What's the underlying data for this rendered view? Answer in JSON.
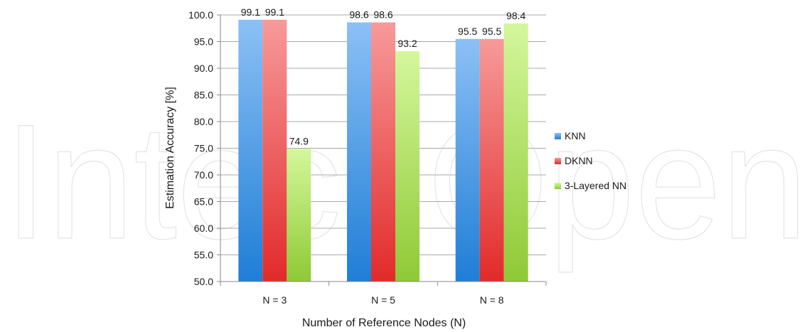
{
  "watermark": "IntechOpen",
  "chart_data": {
    "type": "bar",
    "categories": [
      "N = 3",
      "N = 5",
      "N = 8"
    ],
    "series": [
      {
        "name": "KNN",
        "values": [
          99.1,
          98.6,
          95.5
        ]
      },
      {
        "name": "DKNN",
        "values": [
          99.1,
          98.6,
          95.5
        ]
      },
      {
        "name": "3-Layered NN",
        "values": [
          74.9,
          93.2,
          98.4
        ]
      }
    ],
    "data_labels": [
      [
        "99.1",
        "98.6",
        "95.5"
      ],
      [
        "99.1",
        "98.6",
        "95.5"
      ],
      [
        "74.9",
        "93.2",
        "98.4"
      ]
    ],
    "title": "",
    "xlabel": "Number of Reference Nodes (N)",
    "ylabel": "Estimation Accuracy [%]",
    "ylim": [
      50,
      100
    ],
    "yticks": [
      "50.0",
      "55.0",
      "60.0",
      "65.0",
      "70.0",
      "75.0",
      "80.0",
      "85.0",
      "90.0",
      "95.0",
      "100.0"
    ],
    "grid": true,
    "legend_position": "right",
    "colors": {
      "KNN": {
        "top": "#8cc0f5",
        "bottom": "#1f7ed6"
      },
      "DKNN": {
        "top": "#f79a9a",
        "bottom": "#e22a2a"
      },
      "3-Layered NN": {
        "top": "#d4f79c",
        "bottom": "#8fc936"
      }
    }
  }
}
